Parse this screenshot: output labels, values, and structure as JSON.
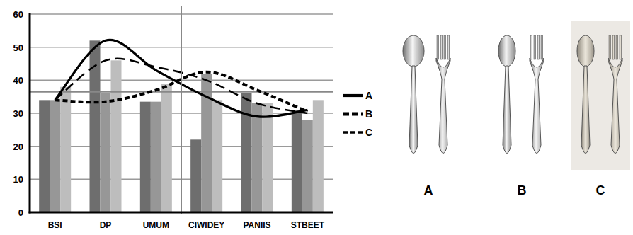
{
  "chart_data": {
    "type": "bar",
    "categories": [
      "BSI",
      "DP",
      "UMUM",
      "CIWIDEY",
      "PANIIS",
      "STBEET"
    ],
    "series": [
      {
        "type": "bar",
        "color": "#6e6e6e",
        "values": [
          34,
          52,
          33.5,
          22,
          36,
          31
        ]
      },
      {
        "type": "bar",
        "color": "#979797",
        "values": [
          34,
          36,
          33.5,
          42,
          33,
          28
        ]
      },
      {
        "type": "bar",
        "color": "#bdbdbd",
        "values": [
          38,
          46,
          39,
          34,
          33,
          34
        ]
      },
      {
        "type": "line",
        "name": "A",
        "color": "#000000",
        "line_style": "solid",
        "values": [
          34,
          52,
          43,
          35,
          29,
          31
        ]
      },
      {
        "type": "line",
        "name": "B",
        "color": "#000000",
        "line_style": "dotted",
        "values": [
          34,
          33.5,
          37,
          42.5,
          37,
          30.5
        ]
      },
      {
        "type": "line",
        "name": "C",
        "color": "#000000",
        "line_style": "dashed",
        "values": [
          34,
          46,
          44,
          40,
          33,
          30
        ]
      }
    ],
    "reference_line": 36.5,
    "ylim": [
      0,
      60
    ],
    "yticks": [
      0,
      10,
      20,
      30,
      40,
      50,
      60
    ],
    "grid": true,
    "legend": "right"
  },
  "panels": [
    {
      "label": "A"
    },
    {
      "label": "B"
    },
    {
      "label": "C"
    }
  ]
}
